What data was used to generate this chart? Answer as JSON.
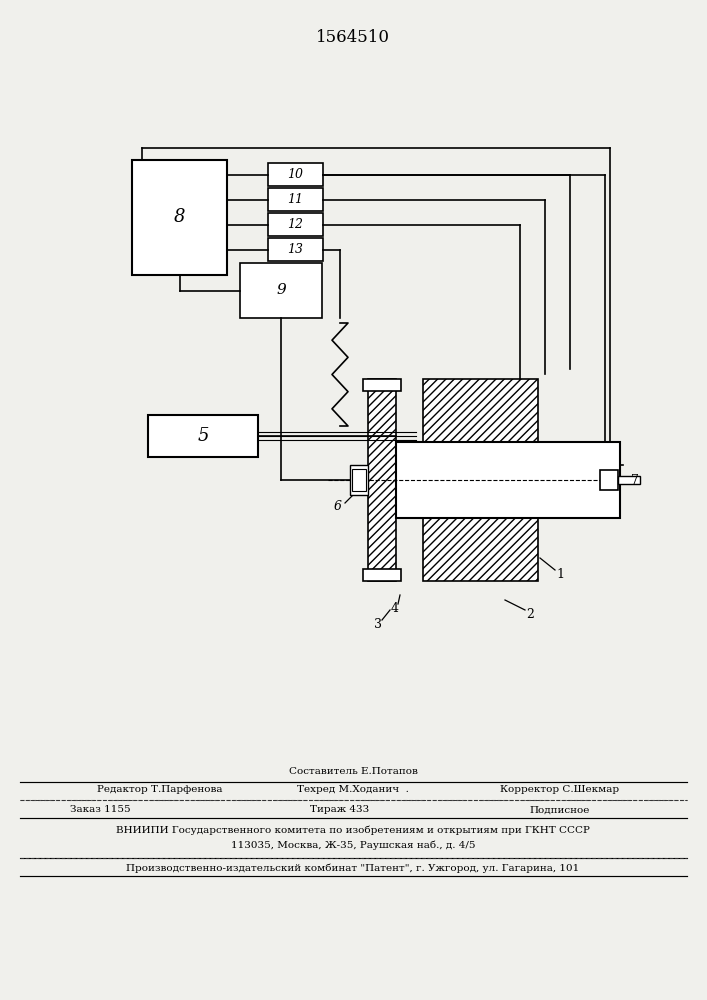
{
  "title": "1564510",
  "bg_color": "#f0f0ec",
  "footer": {
    "line1_center": "Составитель Е.Потапов",
    "line2_left": "Редактор Т.Парфенова",
    "line2_center": "Техред М.Ходанич  .",
    "line2_right": "Корректор С.Шекмар",
    "line3_left": "Заказ 1155",
    "line3_center": "Тираж 433",
    "line3_right": "Подписное",
    "line4": "ВНИИПИ Государственного комитета по изобретениям и открытиям при ГКНТ СССР",
    "line5": "113035, Москва, Ж-35, Раушская наб., д. 4/5",
    "line6": "Производственно-издательский комбинат \"Патент\", г. Ужгород, ул. Гагарина, 101"
  }
}
